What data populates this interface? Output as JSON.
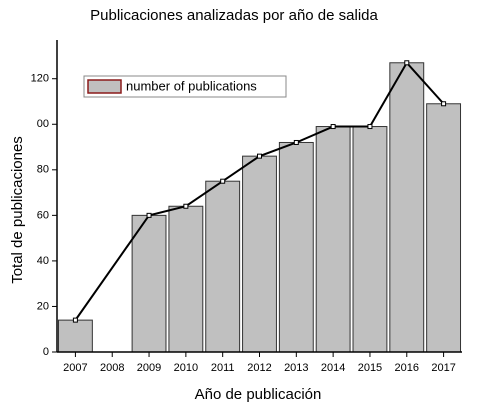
{
  "chart_data": {
    "type": "bar",
    "title": "Publicaciones analizadas por año de salida",
    "x_label": "Año de publicación",
    "y_label": "Total de publicaciones",
    "categories": [
      "2007",
      "2008",
      "2009",
      "2010",
      "2011",
      "2012",
      "2013",
      "2014",
      "2015",
      "2016",
      "2017"
    ],
    "series": [
      {
        "name": "number of publications",
        "color": "#c0c0c0",
        "values": [
          14,
          null,
          60,
          64,
          75,
          86,
          92,
          99,
          99,
          127,
          109
        ]
      }
    ],
    "line": {
      "color": "#000000",
      "x": [
        2007,
        2009,
        2010,
        2011,
        2012,
        2013,
        2014,
        2015,
        2016,
        2017
      ],
      "values": [
        14,
        60,
        64,
        75,
        86,
        92,
        99,
        99,
        127,
        109
      ]
    },
    "ylim": [
      0,
      137
    ],
    "yticks": [
      0,
      20,
      40,
      60,
      80,
      {
        "value": 100,
        "label": "00"
      },
      120
    ],
    "legend": "top-left"
  }
}
